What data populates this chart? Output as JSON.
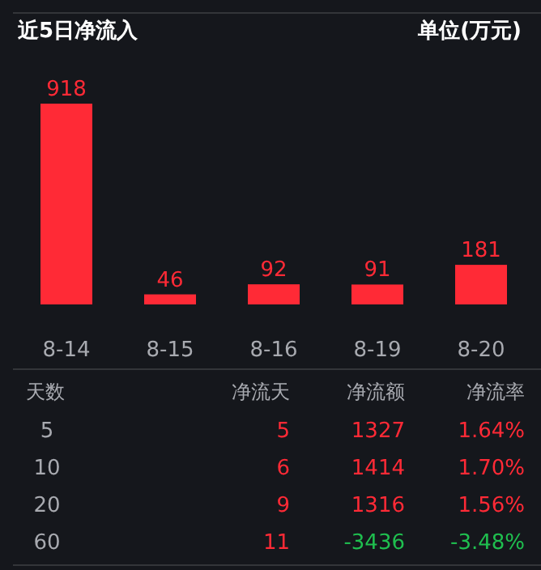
{
  "chart_data": [
    {
      "type": "bar",
      "title": "近5日净流入",
      "annotations": [
        "单位(万元)"
      ],
      "categories": [
        "8-14",
        "8-15",
        "8-16",
        "8-19",
        "8-20"
      ],
      "values": [
        918,
        46,
        92,
        91,
        181
      ],
      "color": "#ff2a36",
      "data_labels": true
    },
    {
      "type": "other",
      "categories": [
        "天数",
        "净流天",
        "净流额",
        "净流率"
      ],
      "cells": [
        [
          "5",
          "5",
          "1327",
          "1.64%"
        ],
        [
          "10",
          "6",
          "1414",
          "1.70%"
        ],
        [
          "20",
          "9",
          "1316",
          "1.56%"
        ],
        [
          "60",
          "11",
          "-3436",
          "-3.48%"
        ]
      ],
      "colors": [
        [
          "#a8aab0",
          "#ff2a36",
          "#ff2a36",
          "#ff2a36"
        ],
        [
          "#a8aab0",
          "#ff2a36",
          "#ff2a36",
          "#ff2a36"
        ],
        [
          "#a8aab0",
          "#ff2a36",
          "#ff2a36",
          "#ff2a36"
        ],
        [
          "#a8aab0",
          "#ff2a36",
          "#1fbf4f",
          "#1fbf4f"
        ]
      ]
    }
  ]
}
